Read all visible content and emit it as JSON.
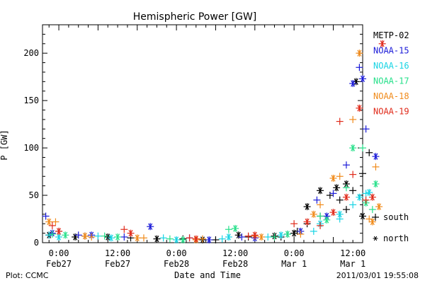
{
  "chart_data": {
    "type": "scatter",
    "title": "Hemispheric Power [GW]",
    "ylabel": "P [GW]",
    "xlabel": "Date and Time",
    "ylim": [
      0,
      230
    ],
    "xlim": [
      -5,
      93
    ],
    "yticks": [
      0,
      50,
      100,
      150,
      200
    ],
    "xticks": [
      {
        "x": 0,
        "line1": "0:00",
        "line2": "Feb27"
      },
      {
        "x": 18,
        "line1": "12:00",
        "line2": "Feb27"
      },
      {
        "x": 36,
        "line1": "0:00",
        "line2": "Feb28"
      },
      {
        "x": 54,
        "line1": "12:00",
        "line2": "Feb28"
      },
      {
        "x": 72,
        "line1": "0:00",
        "line2": "Mar 1"
      },
      {
        "x": 90,
        "line1": "12:00",
        "line2": "Mar 1"
      }
    ],
    "x_unit": "hours since 2011-02-27 00:00 UT",
    "legend_position": "right",
    "marker_legend": [
      {
        "symbol": "+",
        "label": "south"
      },
      {
        "symbol": "*",
        "label": "north"
      }
    ],
    "series": [
      {
        "name": "METP-02",
        "color": "#000000",
        "plus": [
          [
            0,
            12
          ],
          [
            8,
            7
          ],
          [
            22,
            5
          ],
          [
            38,
            4
          ],
          [
            48,
            3
          ],
          [
            58,
            6
          ],
          [
            68,
            6
          ],
          [
            73,
            12
          ],
          [
            76,
            20
          ],
          [
            80,
            28
          ],
          [
            83,
            50
          ],
          [
            86,
            45
          ],
          [
            88,
            35
          ],
          [
            90,
            55
          ],
          [
            93,
            73
          ],
          [
            95,
            95
          ]
        ],
        "star": [
          [
            -3,
            8
          ],
          [
            5,
            6
          ],
          [
            15,
            6
          ],
          [
            30,
            4
          ],
          [
            44,
            3
          ],
          [
            55,
            8
          ],
          [
            66,
            7
          ],
          [
            72,
            10
          ],
          [
            76,
            38
          ],
          [
            80,
            55
          ],
          [
            85,
            58
          ],
          [
            88,
            62
          ],
          [
            91,
            170
          ],
          [
            93,
            28
          ]
        ]
      },
      {
        "name": "NOAA-15",
        "color": "#1a1ad8",
        "plus": [
          [
            -4,
            28
          ],
          [
            6,
            8
          ],
          [
            20,
            6
          ],
          [
            40,
            5
          ],
          [
            56,
            6
          ],
          [
            70,
            9
          ],
          [
            79,
            45
          ],
          [
            84,
            52
          ],
          [
            88,
            82
          ],
          [
            92,
            185
          ],
          [
            94,
            120
          ]
        ],
        "star": [
          [
            -2,
            10
          ],
          [
            10,
            8
          ],
          [
            28,
            17
          ],
          [
            46,
            3
          ],
          [
            60,
            5
          ],
          [
            74,
            12
          ],
          [
            82,
            28
          ],
          [
            90,
            168
          ],
          [
            93,
            173
          ],
          [
            97,
            91
          ]
        ]
      },
      {
        "name": "NOAA-16",
        "color": "#17d4e4",
        "plus": [
          [
            -3,
            8
          ],
          [
            12,
            7
          ],
          [
            32,
            5
          ],
          [
            50,
            4
          ],
          [
            64,
            6
          ],
          [
            78,
            12
          ],
          [
            86,
            25
          ],
          [
            90,
            40
          ],
          [
            94,
            52
          ]
        ],
        "star": [
          [
            0,
            6
          ],
          [
            16,
            5
          ],
          [
            36,
            3
          ],
          [
            52,
            6
          ],
          [
            68,
            8
          ],
          [
            80,
            20
          ],
          [
            86,
            30
          ],
          [
            92,
            48
          ],
          [
            95,
            53
          ]
        ]
      },
      {
        "name": "NOAA-17",
        "color": "#26e08a",
        "plus": [
          [
            -2,
            9
          ],
          [
            14,
            7
          ],
          [
            34,
            4
          ],
          [
            52,
            14
          ],
          [
            66,
            6
          ],
          [
            80,
            28
          ],
          [
            88,
            58
          ],
          [
            93,
            100
          ],
          [
            96,
            35
          ]
        ],
        "star": [
          [
            2,
            8
          ],
          [
            18,
            6
          ],
          [
            38,
            3
          ],
          [
            54,
            15
          ],
          [
            70,
            9
          ],
          [
            82,
            24
          ],
          [
            90,
            100
          ],
          [
            94,
            42
          ],
          [
            97,
            62
          ]
        ]
      },
      {
        "name": "NOAA-18",
        "color": "#f08a1a",
        "plus": [
          [
            -1,
            22
          ],
          [
            10,
            6
          ],
          [
            26,
            5
          ],
          [
            44,
            4
          ],
          [
            60,
            7
          ],
          [
            74,
            9
          ],
          [
            80,
            40
          ],
          [
            86,
            70
          ],
          [
            90,
            130
          ],
          [
            95,
            25
          ],
          [
            97,
            80
          ]
        ],
        "star": [
          [
            -3,
            22
          ],
          [
            8,
            7
          ],
          [
            24,
            5
          ],
          [
            42,
            3
          ],
          [
            62,
            6
          ],
          [
            78,
            30
          ],
          [
            84,
            68
          ],
          [
            92,
            200
          ],
          [
            96,
            22
          ],
          [
            98,
            38
          ]
        ]
      },
      {
        "name": "NOAA-19",
        "color": "#e02a1a",
        "plus": [
          [
            -2,
            18
          ],
          [
            20,
            14
          ],
          [
            40,
            5
          ],
          [
            58,
            7
          ],
          [
            72,
            20
          ],
          [
            80,
            18
          ],
          [
            86,
            128
          ],
          [
            90,
            72
          ],
          [
            94,
            45
          ]
        ],
        "star": [
          [
            0,
            12
          ],
          [
            22,
            10
          ],
          [
            42,
            4
          ],
          [
            60,
            8
          ],
          [
            76,
            22
          ],
          [
            84,
            32
          ],
          [
            88,
            48
          ],
          [
            92,
            142
          ],
          [
            96,
            48
          ],
          [
            99,
            210
          ]
        ]
      }
    ]
  },
  "footer": {
    "left": "Plot: CCMC",
    "right": "2011/03/01  19:55:08"
  }
}
